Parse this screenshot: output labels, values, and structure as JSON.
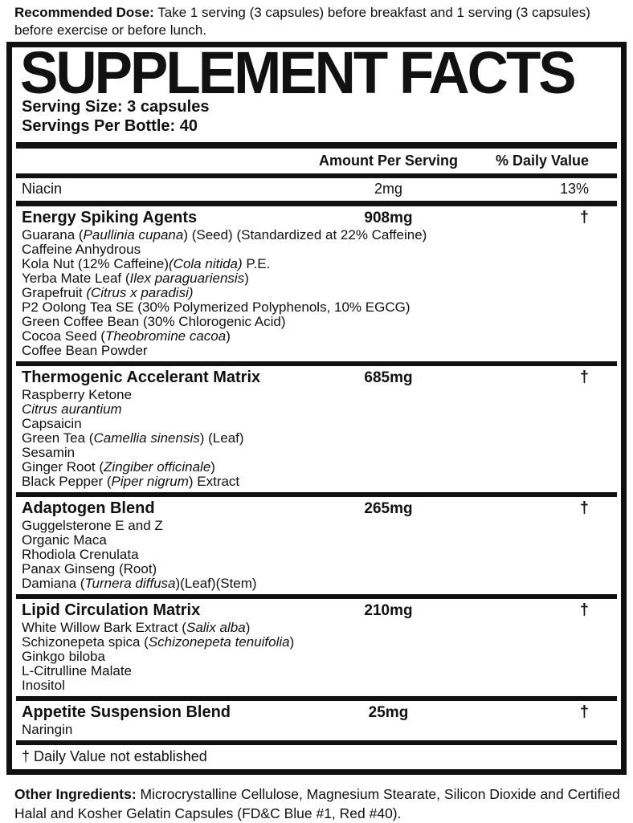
{
  "top_note": {
    "label": "Recommended Dose:",
    "text": " Take 1 serving (3 capsules) before breakfast and 1 serving (3 capsules) before exercise or before lunch."
  },
  "panel": {
    "title": "SUPPLEMENT FACTS",
    "serving_size": "Serving Size: 3 capsules",
    "servings_per_bottle": "Servings Per Bottle: 40",
    "columns": {
      "amount": "Amount Per Serving",
      "daily_value": "% Daily Value"
    },
    "niacin_row": {
      "name": "Niacin",
      "amount": "2mg",
      "daily_value": "13%"
    },
    "sections": [
      {
        "name": "Energy Spiking Agents",
        "amount": "908mg",
        "daily_value": "†",
        "ingredients": [
          [
            {
              "t": "Guarana ("
            },
            {
              "t": "Paullinia cupana",
              "i": true
            },
            {
              "t": ") (Seed) (Standardized at 22% Caffeine)"
            }
          ],
          [
            {
              "t": "Caffeine Anhydrous"
            }
          ],
          [
            {
              "t": "Kola Nut (12% Caffeine)"
            },
            {
              "t": "(Cola nitida)",
              "i": true
            },
            {
              "t": " P.E."
            }
          ],
          [
            {
              "t": "Yerba Mate Leaf ("
            },
            {
              "t": "Ilex paraguariensis",
              "i": true
            },
            {
              "t": ")"
            }
          ],
          [
            {
              "t": "Grapefruit "
            },
            {
              "t": "(Citrus x paradisi)",
              "i": true
            }
          ],
          [
            {
              "t": "P2 Oolong Tea SE (30% Polymerized Polyphenols, 10% EGCG)"
            }
          ],
          [
            {
              "t": "Green Coffee Bean (30% Chlorogenic Acid)"
            }
          ],
          [
            {
              "t": "Cocoa Seed ("
            },
            {
              "t": "Theobromine cacoa",
              "i": true
            },
            {
              "t": ")"
            }
          ],
          [
            {
              "t": "Coffee Bean Powder"
            }
          ]
        ]
      },
      {
        "name": "Thermogenic Accelerant Matrix",
        "amount": "685mg",
        "daily_value": "†",
        "ingredients": [
          [
            {
              "t": "Raspberry Ketone"
            }
          ],
          [
            {
              "t": "Citrus aurantium",
              "i": true
            }
          ],
          [
            {
              "t": "Capsaicin"
            }
          ],
          [
            {
              "t": "Green Tea ("
            },
            {
              "t": "Camellia sinensis",
              "i": true
            },
            {
              "t": ") (Leaf)"
            }
          ],
          [
            {
              "t": "Sesamin"
            }
          ],
          [
            {
              "t": "Ginger Root ("
            },
            {
              "t": "Zingiber officinale",
              "i": true
            },
            {
              "t": ")"
            }
          ],
          [
            {
              "t": "Black Pepper ("
            },
            {
              "t": "Piper nigrum",
              "i": true
            },
            {
              "t": ") Extract"
            }
          ]
        ]
      },
      {
        "name": "Adaptogen Blend",
        "amount": "265mg",
        "daily_value": "†",
        "ingredients": [
          [
            {
              "t": "Guggelsterone E and Z"
            }
          ],
          [
            {
              "t": "Organic Maca"
            }
          ],
          [
            {
              "t": "Rhodiola Crenulata"
            }
          ],
          [
            {
              "t": "Panax Ginseng (Root)"
            }
          ],
          [
            {
              "t": "Damiana ("
            },
            {
              "t": "Turnera diffusa",
              "i": true
            },
            {
              "t": ")(Leaf)(Stem)"
            }
          ]
        ]
      },
      {
        "name": "Lipid Circulation Matrix",
        "amount": "210mg",
        "daily_value": "†",
        "ingredients": [
          [
            {
              "t": "White Willow Bark Extract ("
            },
            {
              "t": "Salix alba",
              "i": true
            },
            {
              "t": ")"
            }
          ],
          [
            {
              "t": "Schizonepeta spica ("
            },
            {
              "t": "Schizonepeta tenuifolia",
              "i": true
            },
            {
              "t": ")"
            }
          ],
          [
            {
              "t": "Ginkgo biloba"
            }
          ],
          [
            {
              "t": "L-Citrulline Malate"
            }
          ],
          [
            {
              "t": "Inositol"
            }
          ]
        ]
      },
      {
        "name": "Appetite Suspension Blend",
        "amount": "25mg",
        "daily_value": "†",
        "ingredients": [
          [
            {
              "t": "Naringin"
            }
          ]
        ]
      }
    ],
    "footnote": "† Daily Value not established"
  },
  "bottom_note": {
    "label": "Other Ingredients:",
    "text": " Microcrystalline Cellulose, Magnesium Stearate, Silicon Dioxide and Certified Halal and Kosher Gelatin Capsules (FD&C Blue #1, Red #40)."
  },
  "colors": {
    "ink": "#111111",
    "background": "#ffffff"
  }
}
